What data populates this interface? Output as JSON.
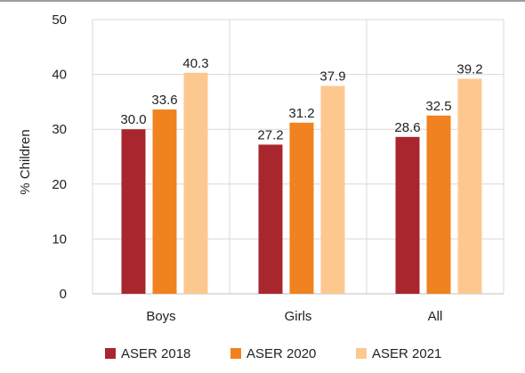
{
  "chart_data": {
    "type": "bar",
    "categories": [
      "Boys",
      "Girls",
      "All"
    ],
    "series": [
      {
        "name": "ASER 2018",
        "values": [
          30.0,
          27.2,
          28.6
        ],
        "color": "#a8262e"
      },
      {
        "name": "ASER 2020",
        "values": [
          33.6,
          31.2,
          32.5
        ],
        "color": "#f0821f"
      },
      {
        "name": "ASER 2021",
        "values": [
          40.3,
          37.9,
          39.2
        ],
        "color": "#fdc890"
      }
    ],
    "title": "",
    "xlabel": "",
    "ylabel": "% Children",
    "ylim": [
      0,
      50
    ],
    "yticks": [
      0,
      10,
      20,
      30,
      40,
      50
    ],
    "grid": true,
    "legend": "bottom",
    "value_format": "one-decimal",
    "colors": {
      "grid": "#d9d9d9",
      "frame": "#bfbfbf",
      "top_border": "#9e9e9e"
    }
  }
}
